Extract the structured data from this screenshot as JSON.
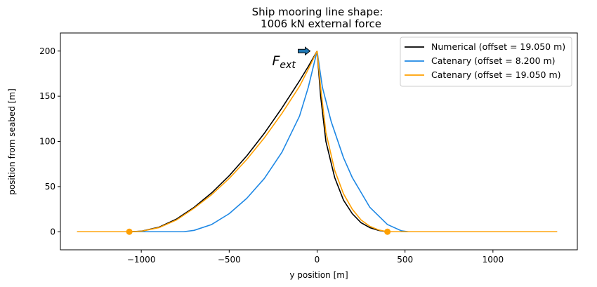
{
  "chart_data": {
    "type": "line",
    "title_line1": "Ship mooring line shape:",
    "title_line2": "1006 kN external force",
    "xlabel": "y position [m]",
    "ylabel": "position from seabed [m]",
    "xlim": [
      -1460,
      1480
    ],
    "ylim": [
      -20,
      220
    ],
    "xticks": [
      -1000,
      -500,
      0,
      500,
      1000
    ],
    "yticks": [
      0,
      50,
      100,
      150,
      200
    ],
    "grid": false,
    "legend_position": "top-right",
    "annotation": {
      "label": "F",
      "subscript": "ext",
      "arrow_direction": "right",
      "at": [
        0,
        200
      ]
    },
    "series": [
      {
        "name": "Numerical (offset = 19.050 m)",
        "color": "#000000",
        "segments": [
          [
            [
              -1068,
              0
            ],
            [
              -1000,
              0.6
            ],
            [
              -900,
              5
            ],
            [
              -800,
              14
            ],
            [
              -700,
              27
            ],
            [
              -600,
              43
            ],
            [
              -500,
              62
            ],
            [
              -400,
              84
            ],
            [
              -300,
              109
            ],
            [
              -200,
              137
            ],
            [
              -100,
              167
            ],
            [
              -50,
              183
            ],
            [
              0,
              200
            ]
          ],
          [
            [
              0,
              200
            ],
            [
              20,
              150
            ],
            [
              50,
              100
            ],
            [
              100,
              60
            ],
            [
              150,
              35
            ],
            [
              200,
              20
            ],
            [
              250,
              10
            ],
            [
              300,
              4.5
            ],
            [
              350,
              1.5
            ],
            [
              400,
              0
            ]
          ]
        ]
      },
      {
        "name": "Catenary (offset = 8.200 m)",
        "color": "#1e88e5",
        "segments": [
          [
            [
              -1365,
              0
            ],
            [
              -760,
              0
            ],
            [
              -700,
              1.5
            ],
            [
              -600,
              8
            ],
            [
              -500,
              20
            ],
            [
              -400,
              37
            ],
            [
              -300,
              59
            ],
            [
              -200,
              88
            ],
            [
              -100,
              128
            ],
            [
              -50,
              160
            ],
            [
              0,
              200
            ]
          ],
          [
            [
              0,
              200
            ],
            [
              30,
              160
            ],
            [
              80,
              122
            ],
            [
              150,
              82
            ],
            [
              200,
              60
            ],
            [
              300,
              27
            ],
            [
              400,
              8
            ],
            [
              480,
              1
            ],
            [
              520,
              0
            ],
            [
              1365,
              0
            ]
          ]
        ]
      },
      {
        "name": "Catenary (offset = 19.050 m)",
        "color": "#ffa000",
        "segments": [
          [
            [
              -1365,
              0
            ],
            [
              -1068,
              0
            ],
            [
              -1000,
              0.5
            ],
            [
              -900,
              4.5
            ],
            [
              -800,
              13
            ],
            [
              -700,
              26
            ],
            [
              -600,
              41
            ],
            [
              -500,
              59
            ],
            [
              -400,
              80
            ],
            [
              -300,
              104
            ],
            [
              -200,
              131
            ],
            [
              -100,
              161
            ],
            [
              -50,
              180
            ],
            [
              0,
              200
            ]
          ],
          [
            [
              0,
              200
            ],
            [
              20,
              160
            ],
            [
              50,
              110
            ],
            [
              100,
              68
            ],
            [
              150,
              42
            ],
            [
              200,
              25
            ],
            [
              250,
              13
            ],
            [
              300,
              6
            ],
            [
              350,
              2
            ],
            [
              400,
              0
            ],
            [
              1365,
              0
            ]
          ]
        ]
      }
    ],
    "markers": [
      {
        "x": -1068,
        "y": 0,
        "color": "#ffa000"
      },
      {
        "x": 400,
        "y": 0,
        "color": "#ffa000"
      }
    ]
  }
}
